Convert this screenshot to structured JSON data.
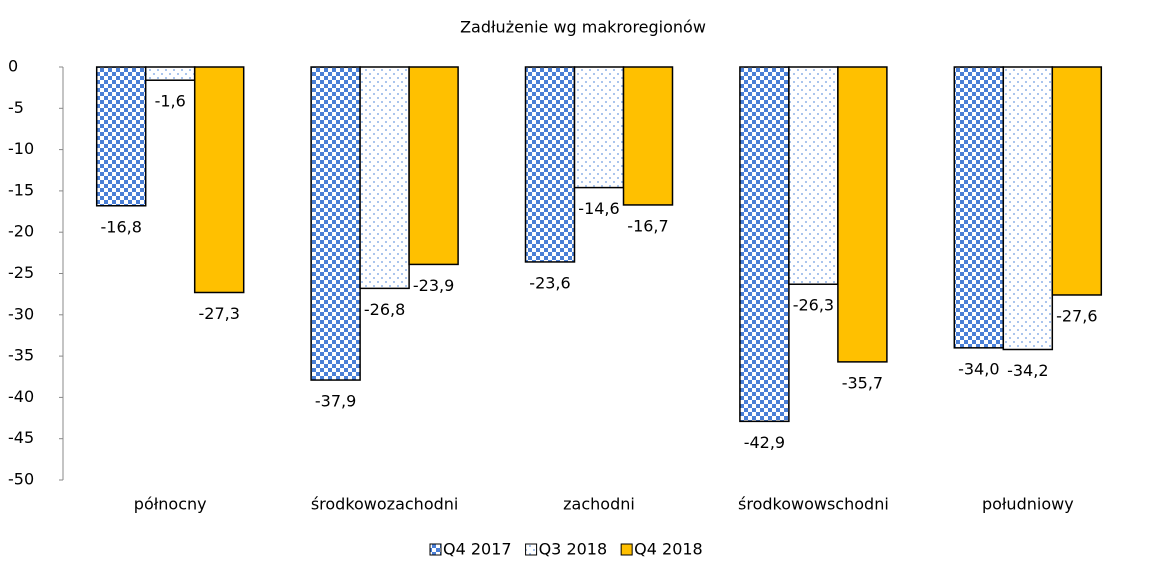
{
  "chart_data": {
    "type": "bar",
    "title": "Zadłużenie wg makroregionów",
    "categories": [
      "północny",
      "środkowozachodni",
      "zachodni",
      "środkowowschodni",
      "południowy"
    ],
    "series": [
      {
        "name": "Q4 2017",
        "color": "#4a7fd6",
        "pattern": "checker",
        "values": [
          -16.8,
          -37.9,
          -23.6,
          -42.9,
          -34.0
        ],
        "value_labels": [
          "-16,8",
          "-37,9",
          "-23,6",
          "-42,9",
          "-34,0"
        ]
      },
      {
        "name": "Q3 2018",
        "color": "#8fb3e8",
        "pattern": "dots",
        "values": [
          -1.6,
          -26.8,
          -14.6,
          -26.3,
          -34.2
        ],
        "value_labels": [
          "-1,6",
          "-26,8",
          "-14,6",
          "-26,3",
          "-34,2"
        ]
      },
      {
        "name": "Q4 2018",
        "color": "#ffc000",
        "pattern": "solid",
        "values": [
          -27.3,
          -23.9,
          -16.7,
          -35.7,
          -27.6
        ],
        "value_labels": [
          "-27,3",
          "-23,9",
          "-16,7",
          "-35,7",
          "-27,6"
        ]
      }
    ],
    "ylim": [
      -50,
      0
    ],
    "yticks": [
      0,
      -5,
      -10,
      -15,
      -20,
      -25,
      -30,
      -35,
      -40,
      -45,
      -50
    ],
    "grid": false,
    "legend": "bottom"
  }
}
